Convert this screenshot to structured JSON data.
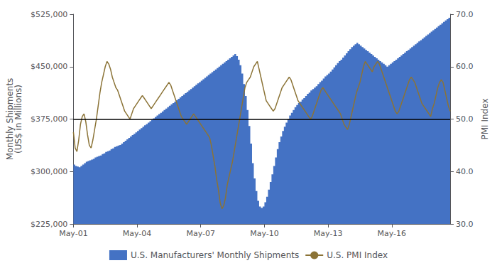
{
  "chart_data": {
    "type": "line",
    "categories": [
      "May-01",
      null,
      null,
      null,
      null,
      null,
      null,
      null,
      null,
      null,
      null,
      null,
      null,
      null,
      null,
      null,
      null,
      null,
      null,
      null,
      null,
      null,
      null,
      null,
      null,
      null,
      null,
      null,
      null,
      null,
      null,
      null,
      null,
      null,
      null,
      null,
      "May-04",
      null,
      null,
      null,
      null,
      null,
      null,
      null,
      null,
      null,
      null,
      null,
      null,
      null,
      null,
      null,
      null,
      null,
      null,
      null,
      null,
      null,
      null,
      null,
      null,
      null,
      null,
      null,
      null,
      null,
      null,
      null,
      null,
      null,
      null,
      null,
      "May-07",
      null,
      null,
      null,
      null,
      null,
      null,
      null,
      null,
      null,
      null,
      null,
      null,
      null,
      null,
      null,
      null,
      null,
      null,
      null,
      null,
      null,
      null,
      null,
      null,
      null,
      null,
      null,
      null,
      null,
      null,
      null,
      null,
      null,
      null,
      null,
      "May-10",
      null,
      null,
      null,
      null,
      null,
      null,
      null,
      null,
      null,
      null,
      null,
      null,
      null,
      null,
      null,
      null,
      null,
      null,
      null,
      null,
      null,
      null,
      null,
      null,
      null,
      null,
      null,
      null,
      null,
      null,
      null,
      null,
      null,
      null,
      null,
      "May-13",
      null,
      null,
      null,
      null,
      null,
      null,
      null,
      null,
      null,
      null,
      null,
      null,
      null,
      null,
      null,
      null,
      null,
      null,
      null,
      null,
      null,
      null,
      null,
      null,
      null,
      null,
      null,
      null,
      null,
      null,
      null,
      null,
      null,
      null,
      null,
      "May-16",
      null,
      null,
      null,
      null,
      null,
      null,
      null,
      null,
      null,
      null,
      null,
      null,
      null,
      null,
      null,
      null,
      null,
      null,
      null,
      null,
      null,
      null,
      null,
      null,
      null,
      null,
      null,
      null,
      null,
      null,
      null,
      null,
      null
    ],
    "ylabel": "Monthly Shipments\n(US$ in Millions)",
    "y2label": "PMI Index",
    "ylim": [
      225000,
      525000
    ],
    "yticks": [
      {
        "value": 225000,
        "label": "$225,000"
      },
      {
        "value": 300000,
        "label": "$300,000"
      },
      {
        "value": 375000,
        "label": "$375,000"
      },
      {
        "value": 450000,
        "label": "$450,000"
      },
      {
        "value": 525000,
        "label": "$525,000"
      }
    ],
    "y2lim": [
      30,
      70
    ],
    "y2ticks": [
      {
        "value": 30,
        "label": "30.0"
      },
      {
        "value": 40,
        "label": "40.0"
      },
      {
        "value": 50,
        "label": "50.0"
      },
      {
        "value": 60,
        "label": "60.0"
      },
      {
        "value": 70,
        "label": "70.0"
      }
    ],
    "hline": {
      "value": 375000,
      "color": "#000000"
    },
    "grid": false,
    "legend": "bottom",
    "series": [
      {
        "name": "U.S. Manufacturers' Monthly Shipments",
        "type": "area",
        "line_style": "step",
        "color": "#4472C4",
        "values": [
          310000,
          308000,
          307000,
          306000,
          308000,
          310000,
          312000,
          314000,
          315000,
          316000,
          317000,
          318000,
          320000,
          321000,
          322000,
          323000,
          325000,
          326000,
          328000,
          329000,
          330000,
          332000,
          333000,
          335000,
          336000,
          337000,
          338000,
          340000,
          342000,
          344000,
          346000,
          348000,
          350000,
          352000,
          354000,
          356000,
          358000,
          360000,
          362000,
          364000,
          366000,
          368000,
          370000,
          372000,
          374000,
          376000,
          378000,
          380000,
          382000,
          384000,
          386000,
          388000,
          390000,
          392000,
          394000,
          396000,
          398000,
          400000,
          402000,
          404000,
          406000,
          408000,
          410000,
          412000,
          414000,
          416000,
          418000,
          420000,
          422000,
          424000,
          426000,
          428000,
          430000,
          432000,
          434000,
          436000,
          438000,
          440000,
          442000,
          444000,
          446000,
          448000,
          450000,
          452000,
          454000,
          456000,
          458000,
          460000,
          462000,
          464000,
          466000,
          468000,
          465000,
          460000,
          452000,
          440000,
          425000,
          408000,
          388000,
          365000,
          340000,
          312000,
          290000,
          272000,
          258000,
          250000,
          248000,
          250000,
          256000,
          264000,
          274000,
          285000,
          296000,
          308000,
          320000,
          332000,
          342000,
          350000,
          358000,
          364000,
          370000,
          375000,
          380000,
          384000,
          388000,
          392000,
          395000,
          398000,
          400000,
          403000,
          405000,
          408000,
          411000,
          413000,
          416000,
          418000,
          420000,
          422000,
          425000,
          428000,
          430000,
          433000,
          436000,
          438000,
          440000,
          443000,
          446000,
          449000,
          452000,
          455000,
          458000,
          460000,
          463000,
          466000,
          469000,
          472000,
          475000,
          478000,
          480000,
          482000,
          484000,
          482000,
          480000,
          478000,
          476000,
          474000,
          472000,
          470000,
          468000,
          466000,
          464000,
          462000,
          460000,
          458000,
          456000,
          454000,
          452000,
          450000,
          452000,
          454000,
          456000,
          458000,
          460000,
          462000,
          464000,
          466000,
          468000,
          470000,
          472000,
          474000,
          476000,
          478000,
          480000,
          482000,
          484000,
          486000,
          488000,
          490000,
          492000,
          494000,
          496000,
          498000,
          500000,
          502000,
          504000,
          506000,
          508000,
          510000,
          512000,
          514000,
          516000,
          518000,
          520000,
          522000
        ]
      },
      {
        "name": "U.S. PMI Index",
        "type": "line",
        "axis": "y2",
        "color": "#8B7336",
        "values": [
          47.5,
          44.5,
          43.8,
          46.0,
          49.0,
          50.5,
          51.0,
          49.5,
          47.0,
          45.0,
          44.5,
          46.0,
          48.0,
          50.0,
          52.5,
          55.0,
          57.0,
          58.5,
          60.0,
          61.0,
          60.5,
          59.5,
          58.0,
          57.0,
          56.0,
          55.5,
          54.5,
          53.5,
          52.5,
          51.5,
          51.0,
          50.5,
          50.0,
          51.0,
          52.0,
          52.5,
          53.0,
          53.5,
          54.0,
          54.5,
          54.0,
          53.5,
          53.0,
          52.5,
          52.0,
          52.5,
          53.0,
          53.5,
          54.0,
          54.5,
          55.0,
          55.5,
          56.0,
          56.5,
          57.0,
          56.5,
          55.5,
          54.5,
          53.5,
          52.5,
          51.5,
          50.5,
          50.0,
          49.5,
          49.0,
          49.5,
          50.0,
          50.5,
          51.0,
          50.5,
          50.0,
          49.5,
          49.0,
          48.5,
          48.0,
          47.5,
          47.0,
          46.5,
          45.0,
          43.0,
          41.0,
          38.5,
          36.5,
          34.0,
          32.9,
          33.5,
          35.0,
          37.5,
          39.0,
          40.5,
          42.0,
          44.0,
          46.0,
          48.0,
          50.0,
          52.0,
          54.0,
          56.0,
          57.0,
          57.5,
          58.0,
          59.0,
          60.0,
          60.5,
          61.0,
          59.5,
          58.0,
          56.5,
          55.0,
          53.5,
          53.0,
          52.5,
          52.0,
          51.5,
          52.0,
          53.0,
          54.0,
          55.0,
          56.0,
          56.5,
          57.0,
          57.5,
          58.0,
          57.5,
          56.5,
          55.5,
          54.5,
          53.5,
          53.0,
          52.5,
          52.0,
          51.5,
          51.0,
          50.5,
          50.0,
          50.5,
          51.5,
          52.5,
          53.5,
          54.5,
          55.5,
          56.0,
          55.5,
          55.0,
          54.5,
          54.0,
          53.5,
          53.0,
          52.5,
          52.0,
          51.5,
          51.0,
          50.0,
          49.0,
          48.5,
          48.0,
          49.0,
          50.5,
          52.0,
          53.5,
          55.0,
          56.0,
          57.0,
          58.5,
          60.0,
          61.0,
          60.5,
          60.0,
          59.5,
          59.0,
          60.0,
          60.5,
          61.0,
          60.5,
          59.5,
          58.5,
          57.5,
          56.5,
          55.5,
          54.5,
          53.5,
          52.5,
          51.5,
          51.0,
          51.5,
          52.5,
          53.5,
          54.5,
          55.5,
          56.5,
          57.5,
          58.0,
          57.5,
          57.0,
          56.0,
          55.0,
          54.0,
          53.0,
          52.5,
          52.0,
          51.5,
          51.0,
          50.5,
          52.0,
          53.0,
          54.5,
          56.0,
          57.0,
          57.5,
          57.0,
          55.5,
          54.0,
          52.5,
          51.5
        ]
      }
    ]
  }
}
